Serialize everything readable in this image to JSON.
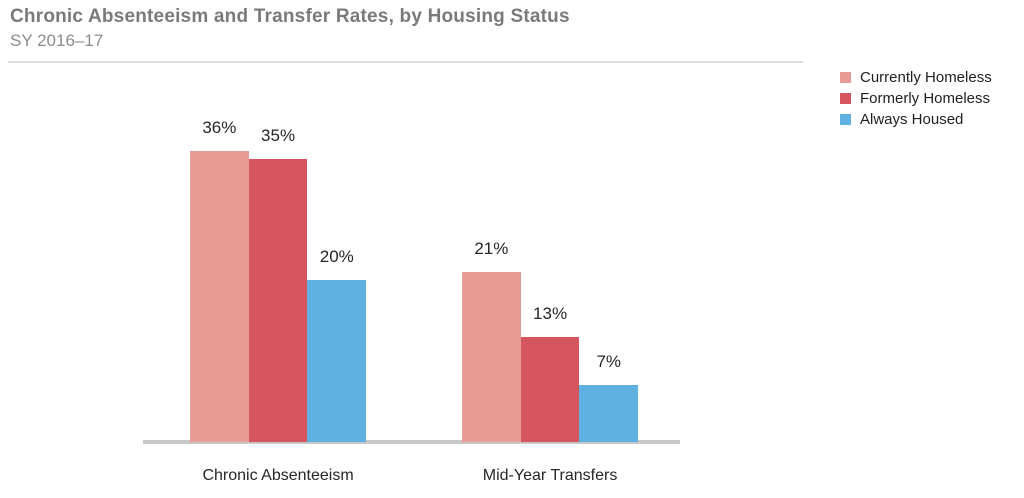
{
  "header": {
    "title": "Chronic Absenteeism and Transfer Rates, by Housing Status",
    "subtitle": "SY 2016–17"
  },
  "colors": {
    "title_text": "#7a7a7a",
    "subtitle_text": "#8c8c8c",
    "label_text": "#262626",
    "legend_text": "#1f1f1f",
    "baseline": "#c7c7c7",
    "divider": "#dcdcdc",
    "currently_homeless": "#e89b94",
    "formerly_homeless": "#d5555f",
    "always_housed": "#5fb1e2"
  },
  "chart_data": {
    "type": "bar",
    "categories": [
      "Chronic Absenteeism",
      "Mid-Year Transfers"
    ],
    "series": [
      {
        "name": "Currently Homeless",
        "color": "#e89b94",
        "values": [
          36,
          21
        ]
      },
      {
        "name": "Formerly Homeless",
        "color": "#d5555f",
        "values": [
          35,
          13
        ]
      },
      {
        "name": "Always Housed",
        "color": "#5fb1e2",
        "values": [
          20,
          7
        ]
      }
    ],
    "value_suffix": "%",
    "ylim": [
      0,
      40
    ],
    "grid": false,
    "axis_line": "bottom-only",
    "legend_position": "top-right",
    "title": "Chronic Absenteeism and Transfer Rates, by Housing Status",
    "subtitle": "SY 2016–17",
    "xlabel": "",
    "ylabel": ""
  }
}
